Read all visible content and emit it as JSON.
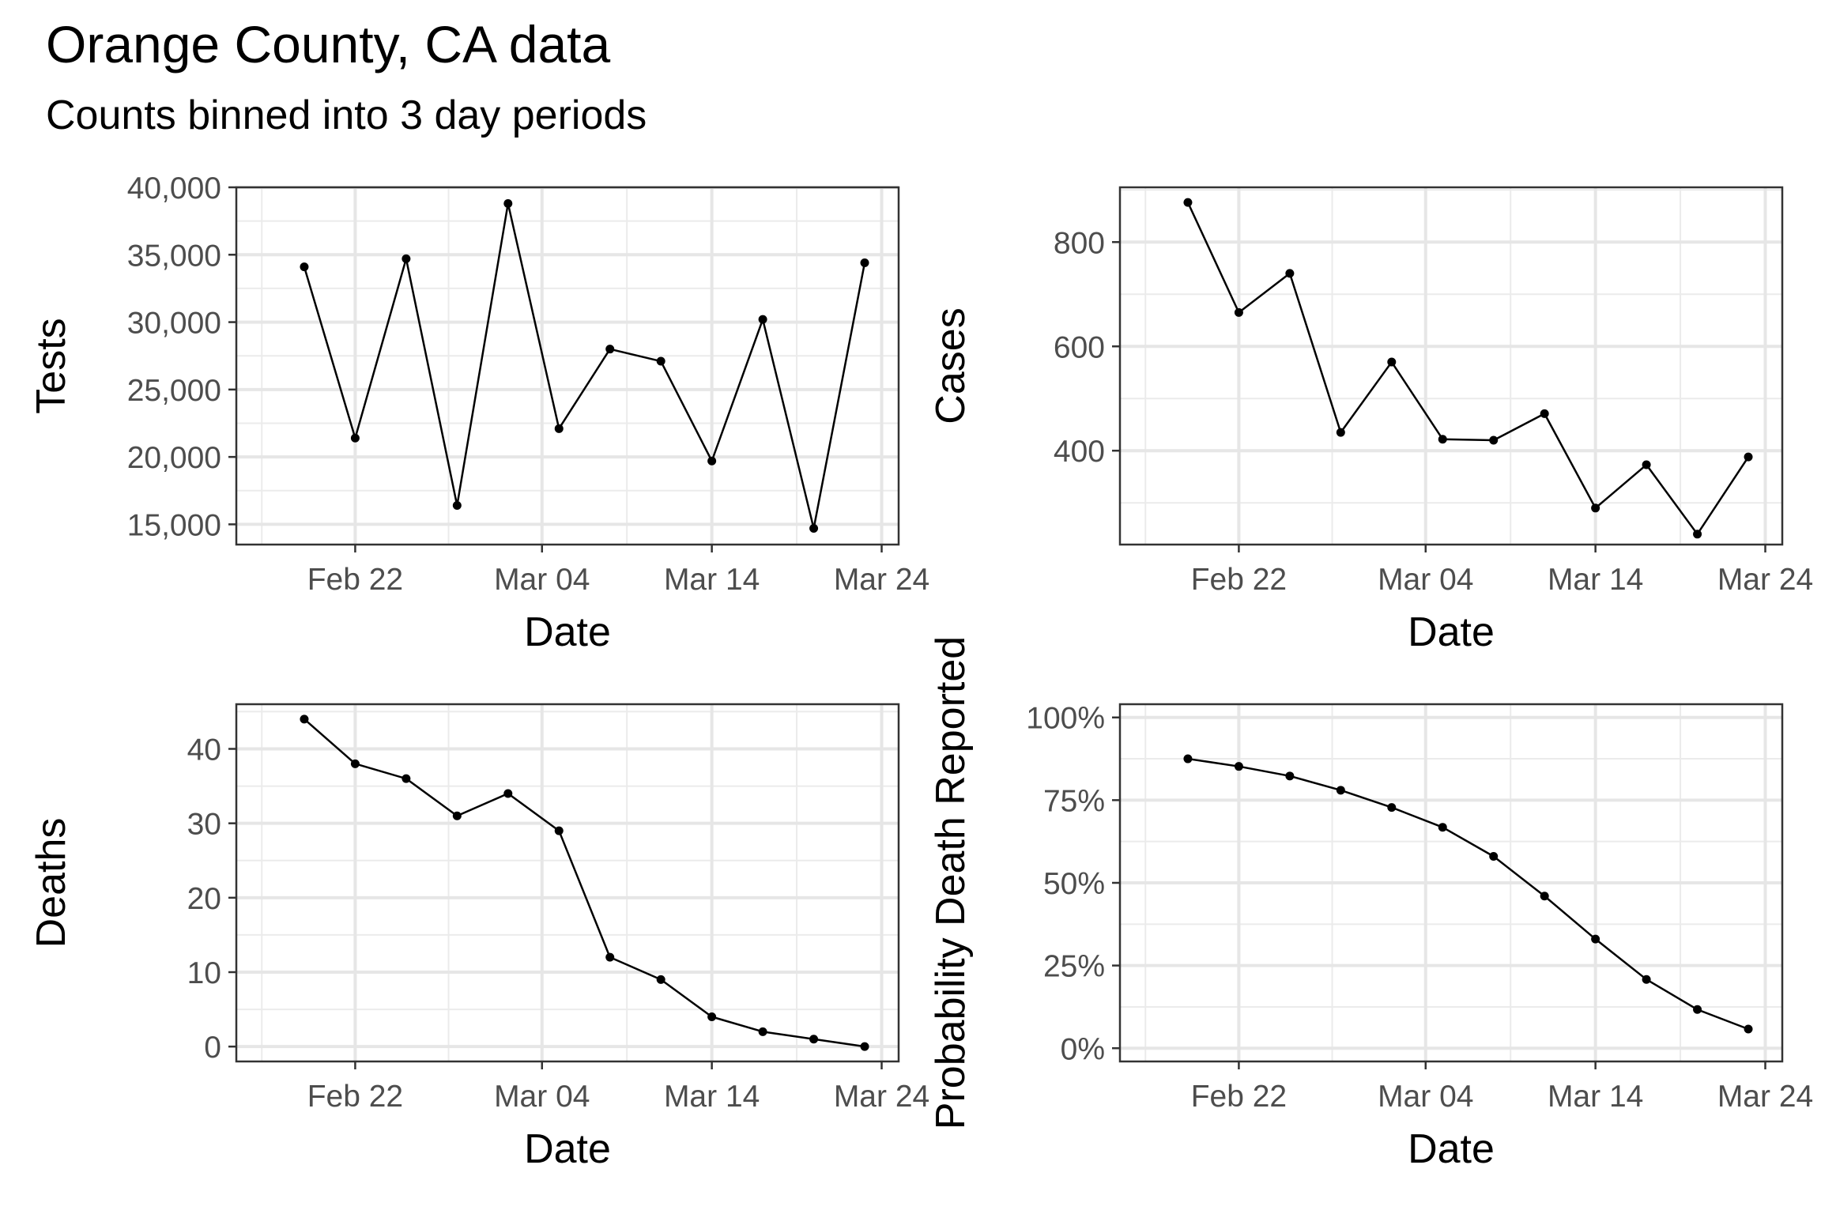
{
  "title": "Orange County, CA data",
  "subtitle": "Counts binned into 3 day periods",
  "chart_data": [
    {
      "type": "line",
      "xlabel": "Date",
      "ylabel": "Tests",
      "xlim": [
        "2020-02-15",
        "2020-03-25"
      ],
      "ylim": [
        13500,
        40000
      ],
      "x_ticks": [
        "Feb 22",
        "Mar 04",
        "Mar 14",
        "Mar 24"
      ],
      "y_ticks": [
        "15,000",
        "20,000",
        "25,000",
        "30,000",
        "35,000",
        "40,000"
      ],
      "x": [
        "2020-02-19",
        "2020-02-22",
        "2020-02-25",
        "2020-02-28",
        "2020-03-02",
        "2020-03-05",
        "2020-03-08",
        "2020-03-11",
        "2020-03-14",
        "2020-03-17",
        "2020-03-20",
        "2020-03-23"
      ],
      "values": [
        34100,
        21400,
        34700,
        16400,
        38800,
        22100,
        28000,
        27100,
        19700,
        30200,
        14700,
        34400
      ]
    },
    {
      "type": "line",
      "xlabel": "Date",
      "ylabel": "Cases",
      "xlim": [
        "2020-02-15",
        "2020-03-25"
      ],
      "ylim": [
        220,
        905
      ],
      "x_ticks": [
        "Feb 22",
        "Mar 04",
        "Mar 14",
        "Mar 24"
      ],
      "y_ticks": [
        "400",
        "600",
        "800"
      ],
      "x": [
        "2020-02-19",
        "2020-02-22",
        "2020-02-25",
        "2020-02-28",
        "2020-03-02",
        "2020-03-05",
        "2020-03-08",
        "2020-03-11",
        "2020-03-14",
        "2020-03-17",
        "2020-03-20",
        "2020-03-23"
      ],
      "values": [
        876,
        665,
        740,
        435,
        570,
        422,
        420,
        471,
        290,
        373,
        240,
        388
      ]
    },
    {
      "type": "line",
      "xlabel": "Date",
      "ylabel": "Deaths",
      "xlim": [
        "2020-02-15",
        "2020-03-25"
      ],
      "ylim": [
        -2,
        46
      ],
      "x_ticks": [
        "Feb 22",
        "Mar 04",
        "Mar 14",
        "Mar 24"
      ],
      "y_ticks": [
        "0",
        "10",
        "20",
        "30",
        "40"
      ],
      "x": [
        "2020-02-19",
        "2020-02-22",
        "2020-02-25",
        "2020-02-28",
        "2020-03-02",
        "2020-03-05",
        "2020-03-08",
        "2020-03-11",
        "2020-03-14",
        "2020-03-17",
        "2020-03-20",
        "2020-03-23"
      ],
      "values": [
        44,
        38,
        36,
        31,
        34,
        29,
        12,
        9,
        4,
        2,
        1,
        0
      ]
    },
    {
      "type": "line",
      "xlabel": "Date",
      "ylabel": "Probability Death Reported",
      "xlim": [
        "2020-02-15",
        "2020-03-25"
      ],
      "ylim": [
        -0.04,
        1.04
      ],
      "x_ticks": [
        "Feb 22",
        "Mar 04",
        "Mar 14",
        "Mar 24"
      ],
      "y_ticks": [
        "0%",
        "25%",
        "50%",
        "75%",
        "100%"
      ],
      "x": [
        "2020-02-19",
        "2020-02-22",
        "2020-02-25",
        "2020-02-28",
        "2020-03-02",
        "2020-03-05",
        "2020-03-08",
        "2020-03-11",
        "2020-03-14",
        "2020-03-17",
        "2020-03-20",
        "2020-03-23"
      ],
      "values": [
        0.875,
        0.852,
        0.823,
        0.78,
        0.728,
        0.668,
        0.58,
        0.46,
        0.33,
        0.208,
        0.117,
        0.058
      ]
    }
  ]
}
